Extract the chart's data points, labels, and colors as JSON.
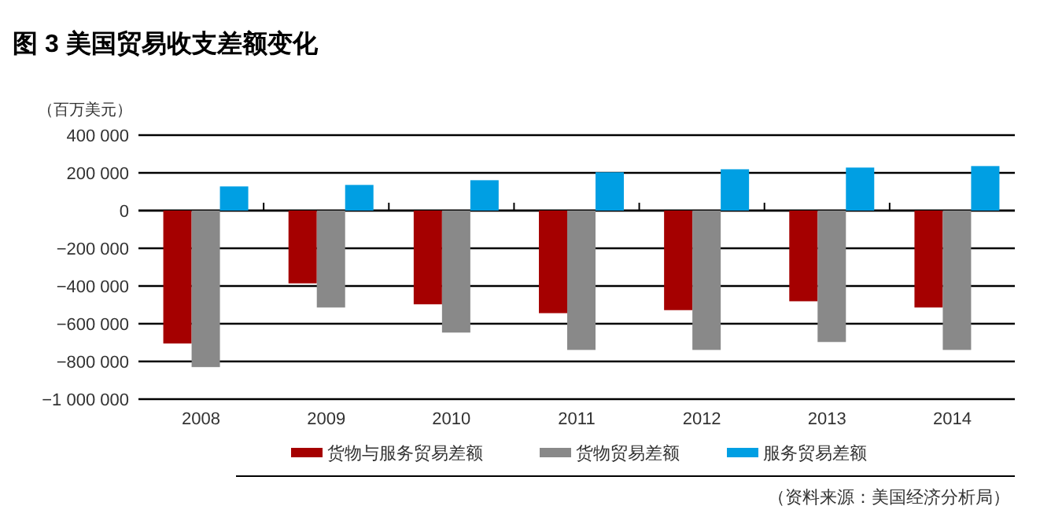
{
  "chart_data": {
    "type": "bar",
    "title": "图 3  美国贸易收支差额变化",
    "ylabel": "（百万美元）",
    "categories": [
      "2008",
      "2009",
      "2010",
      "2011",
      "2012",
      "2013",
      "2014"
    ],
    "series": [
      {
        "name": "货物与服务贸易差额",
        "color": "#a50000",
        "values": [
          -705000,
          -386000,
          -497000,
          -544000,
          -528000,
          -481000,
          -514000
        ]
      },
      {
        "name": "货物贸易差额",
        "color": "#898989",
        "values": [
          -830000,
          -514000,
          -647000,
          -739000,
          -739000,
          -697000,
          -739000
        ]
      },
      {
        "name": "服务贸易差额",
        "color": "#009fe3",
        "values": [
          128000,
          136000,
          161000,
          203000,
          219000,
          228000,
          236000
        ]
      }
    ],
    "ylim": [
      -1000000,
      400000
    ],
    "yticks": [
      {
        "value": 400000,
        "label": "400 000"
      },
      {
        "value": 200000,
        "label": "200 000"
      },
      0,
      {
        "value": -200000,
        "label": "−200 000"
      },
      {
        "value": -400000,
        "label": "−400 000"
      },
      {
        "value": -600000,
        "label": "−600 000"
      },
      {
        "value": -800000,
        "label": "−800 000"
      },
      {
        "value": -1000000,
        "label": "−1 000 000"
      }
    ],
    "grid": "y",
    "legend": "bottom",
    "annotations": [
      "（资料来源：美国经济分析局）"
    ]
  }
}
